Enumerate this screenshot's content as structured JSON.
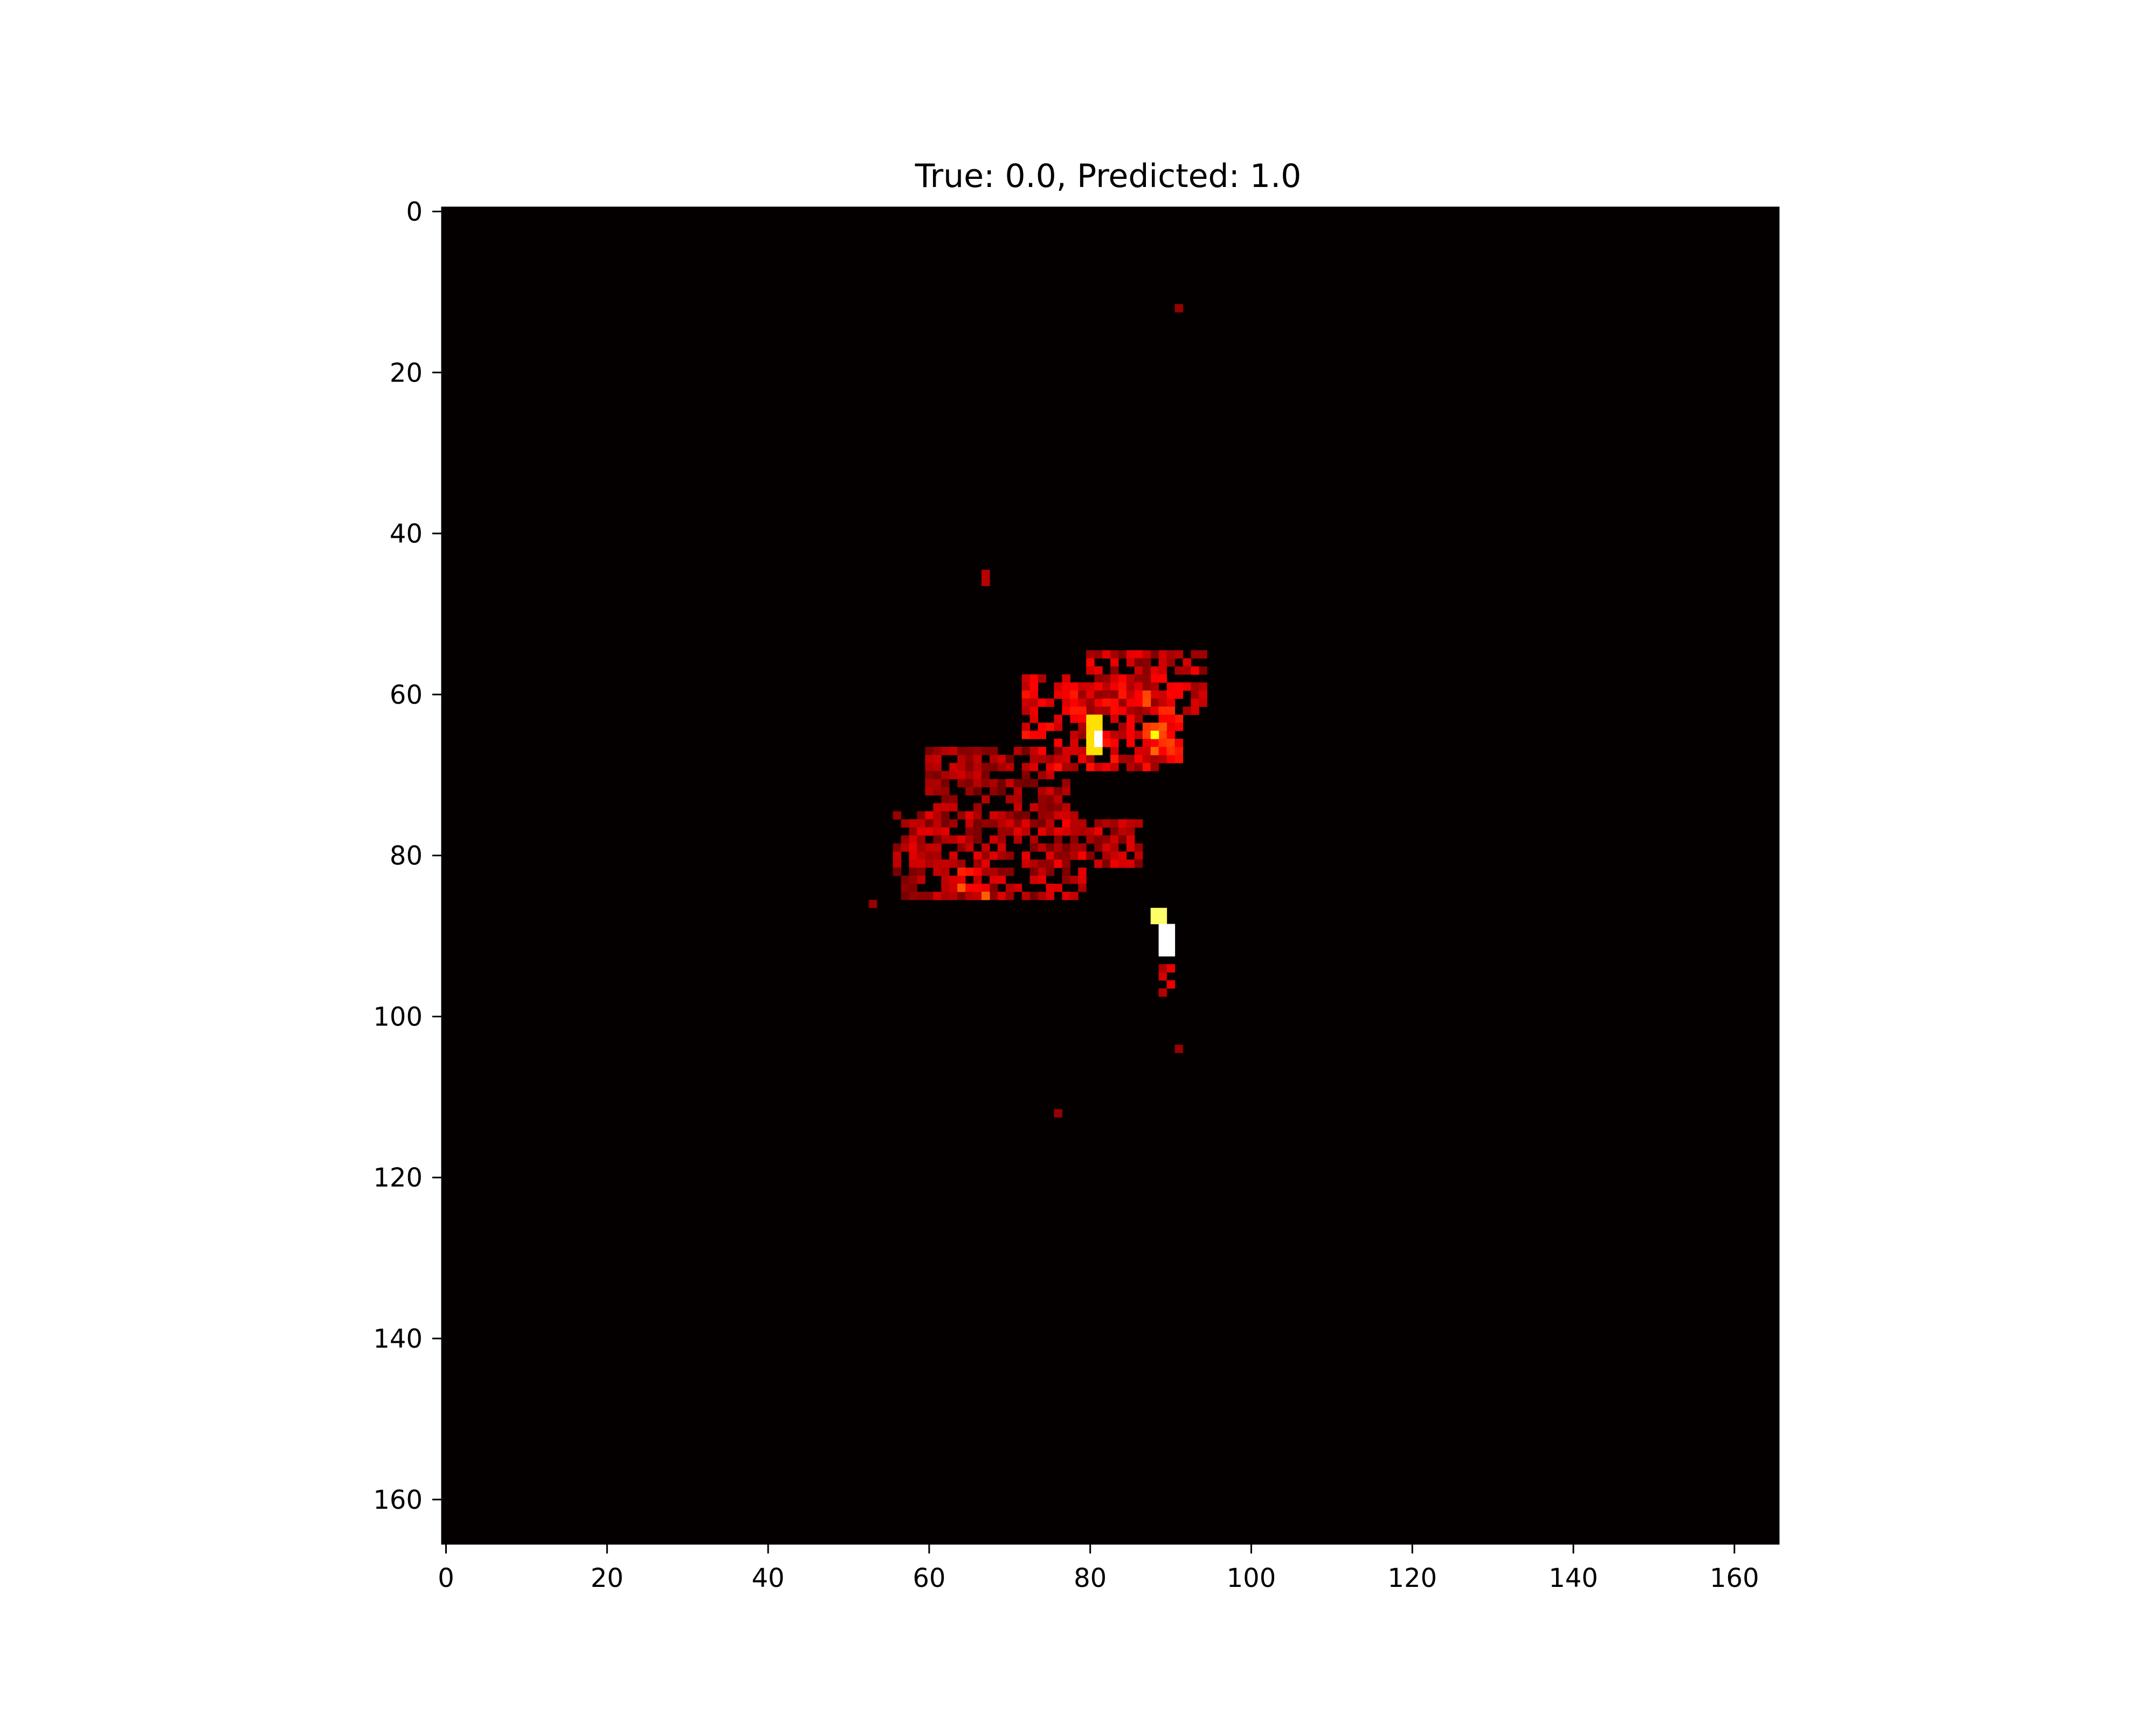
{
  "chart_data": {
    "type": "heatmap",
    "title": "True: 0.0, Predicted: 1.0",
    "xlabel": "",
    "ylabel": "",
    "xlim": [
      -0.5,
      165.5
    ],
    "ylim": [
      165.5,
      -0.5
    ],
    "y_inverted": true,
    "grid": false,
    "legend": "none",
    "colormap": "hot",
    "background_color": "#050000",
    "xticks": [
      {
        "value": 0,
        "label": "0"
      },
      {
        "value": 20,
        "label": "20"
      },
      {
        "value": 40,
        "label": "40"
      },
      {
        "value": 60,
        "label": "60"
      },
      {
        "value": 80,
        "label": "80"
      },
      {
        "value": 100,
        "label": "100"
      },
      {
        "value": 120,
        "label": "120"
      },
      {
        "value": 140,
        "label": "140"
      },
      {
        "value": 160,
        "label": "160"
      }
    ],
    "yticks": [
      {
        "value": 0,
        "label": "0"
      },
      {
        "value": 20,
        "label": "20"
      },
      {
        "value": 40,
        "label": "40"
      },
      {
        "value": 60,
        "label": "60"
      },
      {
        "value": 80,
        "label": "80"
      },
      {
        "value": 100,
        "label": "100"
      },
      {
        "value": 120,
        "label": "120"
      },
      {
        "value": 140,
        "label": "140"
      },
      {
        "value": 160,
        "label": "160"
      }
    ],
    "hot_regions": [
      {
        "x": [
          67,
          68
        ],
        "y": [
          45,
          47
        ],
        "value": 0.25
      },
      {
        "x": [
          80,
          95
        ],
        "y": [
          55,
          63
        ],
        "value": 0.3
      },
      {
        "x": [
          72,
          92
        ],
        "y": [
          58,
          70
        ],
        "value": 0.35
      },
      {
        "x": [
          60,
          78
        ],
        "y": [
          67,
          76
        ],
        "value": 0.25
      },
      {
        "x": [
          56,
          80
        ],
        "y": [
          75,
          86
        ],
        "value": 0.28
      },
      {
        "x": [
          76,
          87
        ],
        "y": [
          76,
          82
        ],
        "value": 0.3
      },
      {
        "x": [
          87,
          92
        ],
        "y": [
          60,
          68
        ],
        "value": 0.45
      },
      {
        "x": [
          64,
          68
        ],
        "y": [
          82,
          86
        ],
        "value": 0.45
      },
      {
        "x": [
          80,
          82
        ],
        "y": [
          63,
          68
        ],
        "value": 0.7
      },
      {
        "x": [
          81,
          82
        ],
        "y": [
          65,
          67
        ],
        "value": 1.0
      },
      {
        "x": [
          88,
          89
        ],
        "y": [
          65,
          66
        ],
        "value": 0.75
      },
      {
        "x": [
          88,
          90
        ],
        "y": [
          87,
          89
        ],
        "value": 0.85
      },
      {
        "x": [
          89,
          91
        ],
        "y": [
          89,
          93
        ],
        "value": 1.0
      },
      {
        "x": [
          89,
          91
        ],
        "y": [
          93,
          100
        ],
        "value": 0.3
      },
      {
        "x": [
          91,
          92
        ],
        "y": [
          12,
          13
        ],
        "value": 0.2
      },
      {
        "x": [
          76,
          77
        ],
        "y": [
          112,
          113
        ],
        "value": 0.2
      },
      {
        "x": [
          53,
          54
        ],
        "y": [
          86,
          87
        ],
        "value": 0.2
      },
      {
        "x": [
          91,
          92
        ],
        "y": [
          104,
          105
        ],
        "value": 0.2
      }
    ]
  }
}
